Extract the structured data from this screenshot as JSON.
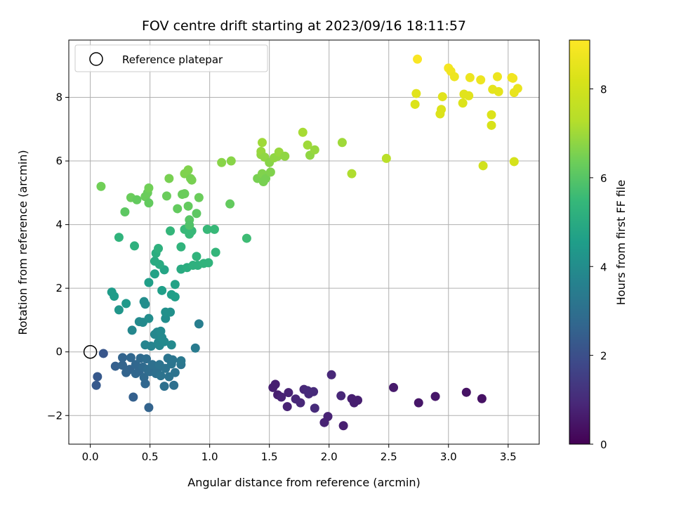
{
  "chart_data": {
    "type": "scatter",
    "title": "FOV centre drift starting at 2023/09/16 18:11:57",
    "xlabel": "Angular distance from reference (arcmin)",
    "ylabel": "Rotation from reference (arcmin)",
    "xlim": [
      -0.18,
      3.76
    ],
    "ylim": [
      -2.9,
      9.8
    ],
    "xticks": [
      "0.0",
      "0.5",
      "1.0",
      "1.5",
      "2.0",
      "2.5",
      "3.0",
      "3.5"
    ],
    "yticks": [
      "−2",
      "0",
      "2",
      "4",
      "6",
      "8"
    ],
    "grid": true,
    "legend": {
      "position": "top-left",
      "entries": [
        "Reference platepar"
      ]
    },
    "reference_point": {
      "x": 0.0,
      "y": 0.0
    },
    "colorbar": {
      "label": "Hours from first FF file",
      "range": [
        0,
        9.1
      ],
      "ticks": [
        "0",
        "2",
        "4",
        "6",
        "8"
      ],
      "colormap": "viridis"
    },
    "points": [
      {
        "x": 1.53,
        "y": -1.12,
        "t": 0.7
      },
      {
        "x": 1.55,
        "y": -1.02,
        "t": 0.7
      },
      {
        "x": 1.57,
        "y": -1.35,
        "t": 0.7
      },
      {
        "x": 1.6,
        "y": -1.42,
        "t": 0.8
      },
      {
        "x": 1.65,
        "y": -1.72,
        "t": 0.8
      },
      {
        "x": 1.66,
        "y": -1.28,
        "t": 0.8
      },
      {
        "x": 1.72,
        "y": -1.48,
        "t": 0.9
      },
      {
        "x": 1.76,
        "y": -1.6,
        "t": 0.9
      },
      {
        "x": 1.79,
        "y": -1.18,
        "t": 0.9
      },
      {
        "x": 1.82,
        "y": -1.22,
        "t": 1.0
      },
      {
        "x": 1.83,
        "y": -1.32,
        "t": 1.0
      },
      {
        "x": 1.87,
        "y": -1.25,
        "t": 1.0
      },
      {
        "x": 1.88,
        "y": -1.77,
        "t": 1.0
      },
      {
        "x": 1.96,
        "y": -2.22,
        "t": 0.8
      },
      {
        "x": 1.99,
        "y": -2.03,
        "t": 0.8
      },
      {
        "x": 2.02,
        "y": -0.72,
        "t": 0.9
      },
      {
        "x": 2.1,
        "y": -1.38,
        "t": 0.9
      },
      {
        "x": 2.12,
        "y": -2.32,
        "t": 0.7
      },
      {
        "x": 2.19,
        "y": -1.47,
        "t": 0.7
      },
      {
        "x": 2.21,
        "y": -1.6,
        "t": 0.7
      },
      {
        "x": 2.24,
        "y": -1.52,
        "t": 0.7
      },
      {
        "x": 2.54,
        "y": -1.12,
        "t": 0.6
      },
      {
        "x": 2.75,
        "y": -1.6,
        "t": 0.5
      },
      {
        "x": 2.89,
        "y": -1.4,
        "t": 0.5
      },
      {
        "x": 3.15,
        "y": -1.27,
        "t": 0.4
      },
      {
        "x": 3.28,
        "y": -1.47,
        "t": 0.4
      },
      {
        "x": 0.05,
        "y": -1.05,
        "t": 2.3
      },
      {
        "x": 0.06,
        "y": -0.78,
        "t": 2.3
      },
      {
        "x": 0.11,
        "y": -0.05,
        "t": 2.2
      },
      {
        "x": 0.21,
        "y": -0.45,
        "t": 2.5
      },
      {
        "x": 0.27,
        "y": -0.42,
        "t": 2.6
      },
      {
        "x": 0.27,
        "y": -0.18,
        "t": 2.6
      },
      {
        "x": 0.3,
        "y": -0.65,
        "t": 2.6
      },
      {
        "x": 0.33,
        "y": -0.55,
        "t": 2.6
      },
      {
        "x": 0.34,
        "y": -0.18,
        "t": 2.7
      },
      {
        "x": 0.36,
        "y": -1.42,
        "t": 2.5
      },
      {
        "x": 0.38,
        "y": -0.4,
        "t": 2.7
      },
      {
        "x": 0.38,
        "y": -0.68,
        "t": 2.7
      },
      {
        "x": 0.41,
        "y": -0.6,
        "t": 2.7
      },
      {
        "x": 0.42,
        "y": -0.2,
        "t": 2.8
      },
      {
        "x": 0.44,
        "y": -0.48,
        "t": 2.8
      },
      {
        "x": 0.45,
        "y": -0.8,
        "t": 2.8
      },
      {
        "x": 0.46,
        "y": -1.0,
        "t": 2.7
      },
      {
        "x": 0.47,
        "y": -0.22,
        "t": 2.9
      },
      {
        "x": 0.48,
        "y": -0.55,
        "t": 2.9
      },
      {
        "x": 0.49,
        "y": -1.75,
        "t": 2.6
      },
      {
        "x": 0.5,
        "y": -0.62,
        "t": 2.9
      },
      {
        "x": 0.52,
        "y": -0.4,
        "t": 3.0
      },
      {
        "x": 0.55,
        "y": -0.68,
        "t": 3.0
      },
      {
        "x": 0.56,
        "y": -0.55,
        "t": 3.0
      },
      {
        "x": 0.58,
        "y": -0.4,
        "t": 3.1
      },
      {
        "x": 0.59,
        "y": -0.75,
        "t": 3.1
      },
      {
        "x": 0.62,
        "y": -1.08,
        "t": 3.0
      },
      {
        "x": 0.63,
        "y": -0.52,
        "t": 3.1
      },
      {
        "x": 0.65,
        "y": -0.2,
        "t": 3.2
      },
      {
        "x": 0.66,
        "y": -0.78,
        "t": 3.1
      },
      {
        "x": 0.68,
        "y": -0.38,
        "t": 3.2
      },
      {
        "x": 0.69,
        "y": -0.25,
        "t": 3.2
      },
      {
        "x": 0.7,
        "y": -1.05,
        "t": 3.0
      },
      {
        "x": 0.71,
        "y": -0.65,
        "t": 3.1
      },
      {
        "x": 0.76,
        "y": -0.4,
        "t": 3.2
      },
      {
        "x": 0.76,
        "y": -0.28,
        "t": 3.3
      },
      {
        "x": 0.88,
        "y": 0.12,
        "t": 3.4
      },
      {
        "x": 0.91,
        "y": 0.88,
        "t": 3.5
      },
      {
        "x": 0.35,
        "y": 0.68,
        "t": 3.8
      },
      {
        "x": 0.41,
        "y": 0.95,
        "t": 3.9
      },
      {
        "x": 0.44,
        "y": 0.93,
        "t": 3.9
      },
      {
        "x": 0.45,
        "y": 1.58,
        "t": 4.0
      },
      {
        "x": 0.46,
        "y": 1.5,
        "t": 4.0
      },
      {
        "x": 0.46,
        "y": 0.22,
        "t": 3.7
      },
      {
        "x": 0.49,
        "y": 1.05,
        "t": 4.0
      },
      {
        "x": 0.51,
        "y": 0.18,
        "t": 3.7
      },
      {
        "x": 0.54,
        "y": 0.55,
        "t": 3.8
      },
      {
        "x": 0.56,
        "y": 0.62,
        "t": 3.8
      },
      {
        "x": 0.57,
        "y": 0.3,
        "t": 3.8
      },
      {
        "x": 0.58,
        "y": 0.2,
        "t": 3.8
      },
      {
        "x": 0.59,
        "y": 0.65,
        "t": 3.9
      },
      {
        "x": 0.6,
        "y": 0.45,
        "t": 3.9
      },
      {
        "x": 0.62,
        "y": 0.32,
        "t": 3.9
      },
      {
        "x": 0.63,
        "y": 1.05,
        "t": 4.0
      },
      {
        "x": 0.63,
        "y": 1.25,
        "t": 4.1
      },
      {
        "x": 0.67,
        "y": 1.25,
        "t": 4.1
      },
      {
        "x": 0.68,
        "y": 0.22,
        "t": 3.9
      },
      {
        "x": 0.18,
        "y": 1.88,
        "t": 4.5
      },
      {
        "x": 0.2,
        "y": 1.75,
        "t": 4.5
      },
      {
        "x": 0.24,
        "y": 1.32,
        "t": 4.3
      },
      {
        "x": 0.3,
        "y": 1.52,
        "t": 4.4
      },
      {
        "x": 0.49,
        "y": 2.18,
        "t": 4.6
      },
      {
        "x": 0.54,
        "y": 2.45,
        "t": 4.7
      },
      {
        "x": 0.6,
        "y": 1.93,
        "t": 4.6
      },
      {
        "x": 0.62,
        "y": 2.58,
        "t": 4.8
      },
      {
        "x": 0.68,
        "y": 1.8,
        "t": 4.6
      },
      {
        "x": 0.71,
        "y": 1.73,
        "t": 4.6
      },
      {
        "x": 0.71,
        "y": 2.12,
        "t": 4.7
      },
      {
        "x": 0.54,
        "y": 2.85,
        "t": 5.0
      },
      {
        "x": 0.55,
        "y": 3.1,
        "t": 5.1
      },
      {
        "x": 0.57,
        "y": 3.25,
        "t": 5.2
      },
      {
        "x": 0.58,
        "y": 2.75,
        "t": 5.0
      },
      {
        "x": 0.24,
        "y": 3.6,
        "t": 5.3
      },
      {
        "x": 0.37,
        "y": 3.33,
        "t": 5.2
      },
      {
        "x": 0.67,
        "y": 3.8,
        "t": 5.4
      },
      {
        "x": 0.76,
        "y": 2.6,
        "t": 5.0
      },
      {
        "x": 0.76,
        "y": 3.3,
        "t": 5.3
      },
      {
        "x": 0.79,
        "y": 3.85,
        "t": 5.5
      },
      {
        "x": 0.81,
        "y": 2.65,
        "t": 5.1
      },
      {
        "x": 0.83,
        "y": 3.7,
        "t": 5.5
      },
      {
        "x": 0.85,
        "y": 3.8,
        "t": 5.5
      },
      {
        "x": 0.86,
        "y": 2.72,
        "t": 5.2
      },
      {
        "x": 0.89,
        "y": 3.0,
        "t": 5.3
      },
      {
        "x": 0.9,
        "y": 2.72,
        "t": 5.2
      },
      {
        "x": 0.95,
        "y": 2.78,
        "t": 5.3
      },
      {
        "x": 0.98,
        "y": 3.85,
        "t": 5.5
      },
      {
        "x": 0.99,
        "y": 2.8,
        "t": 5.3
      },
      {
        "x": 1.04,
        "y": 3.85,
        "t": 5.5
      },
      {
        "x": 1.05,
        "y": 3.13,
        "t": 5.4
      },
      {
        "x": 1.31,
        "y": 3.57,
        "t": 5.6
      },
      {
        "x": 0.09,
        "y": 5.2,
        "t": 6.4
      },
      {
        "x": 0.29,
        "y": 4.4,
        "t": 6.1
      },
      {
        "x": 0.34,
        "y": 4.85,
        "t": 6.3
      },
      {
        "x": 0.39,
        "y": 4.78,
        "t": 6.2
      },
      {
        "x": 0.46,
        "y": 4.88,
        "t": 6.3
      },
      {
        "x": 0.48,
        "y": 5.0,
        "t": 6.3
      },
      {
        "x": 0.49,
        "y": 4.68,
        "t": 6.2
      },
      {
        "x": 0.49,
        "y": 5.15,
        "t": 6.4
      },
      {
        "x": 0.64,
        "y": 4.9,
        "t": 6.3
      },
      {
        "x": 0.66,
        "y": 5.45,
        "t": 6.5
      },
      {
        "x": 0.73,
        "y": 4.5,
        "t": 6.2
      },
      {
        "x": 0.77,
        "y": 4.95,
        "t": 6.3
      },
      {
        "x": 0.79,
        "y": 4.97,
        "t": 6.3
      },
      {
        "x": 0.79,
        "y": 5.6,
        "t": 6.6
      },
      {
        "x": 0.82,
        "y": 4.58,
        "t": 6.2
      },
      {
        "x": 0.82,
        "y": 5.72,
        "t": 6.6
      },
      {
        "x": 0.83,
        "y": 4.15,
        "t": 6.0
      },
      {
        "x": 0.83,
        "y": 3.98,
        "t": 5.9
      },
      {
        "x": 0.84,
        "y": 5.45,
        "t": 6.5
      },
      {
        "x": 0.85,
        "y": 5.4,
        "t": 6.5
      },
      {
        "x": 0.89,
        "y": 4.35,
        "t": 6.1
      },
      {
        "x": 0.91,
        "y": 4.85,
        "t": 6.3
      },
      {
        "x": 1.1,
        "y": 5.95,
        "t": 6.7
      },
      {
        "x": 1.17,
        "y": 4.65,
        "t": 6.2
      },
      {
        "x": 1.18,
        "y": 6.0,
        "t": 6.7
      },
      {
        "x": 1.4,
        "y": 5.45,
        "t": 6.5
      },
      {
        "x": 1.43,
        "y": 6.2,
        "t": 6.8
      },
      {
        "x": 1.43,
        "y": 6.3,
        "t": 6.9
      },
      {
        "x": 1.44,
        "y": 5.6,
        "t": 6.6
      },
      {
        "x": 1.44,
        "y": 6.58,
        "t": 7.0
      },
      {
        "x": 1.45,
        "y": 5.35,
        "t": 6.5
      },
      {
        "x": 1.46,
        "y": 6.12,
        "t": 6.8
      },
      {
        "x": 1.47,
        "y": 5.45,
        "t": 6.5
      },
      {
        "x": 1.5,
        "y": 5.95,
        "t": 6.7
      },
      {
        "x": 1.51,
        "y": 5.65,
        "t": 6.6
      },
      {
        "x": 1.54,
        "y": 6.1,
        "t": 6.8
      },
      {
        "x": 1.57,
        "y": 6.15,
        "t": 6.8
      },
      {
        "x": 1.58,
        "y": 6.28,
        "t": 6.9
      },
      {
        "x": 1.63,
        "y": 6.15,
        "t": 6.8
      },
      {
        "x": 1.78,
        "y": 6.9,
        "t": 7.1
      },
      {
        "x": 1.82,
        "y": 6.5,
        "t": 7.0
      },
      {
        "x": 1.84,
        "y": 6.18,
        "t": 6.8
      },
      {
        "x": 1.88,
        "y": 6.35,
        "t": 6.9
      },
      {
        "x": 2.11,
        "y": 6.58,
        "t": 7.0
      },
      {
        "x": 2.19,
        "y": 5.6,
        "t": 7.2
      },
      {
        "x": 2.48,
        "y": 6.08,
        "t": 7.4
      },
      {
        "x": 2.72,
        "y": 7.78,
        "t": 8.3
      },
      {
        "x": 2.73,
        "y": 8.12,
        "t": 8.4
      },
      {
        "x": 2.74,
        "y": 9.2,
        "t": 9.0
      },
      {
        "x": 2.93,
        "y": 7.48,
        "t": 8.3
      },
      {
        "x": 2.94,
        "y": 7.62,
        "t": 8.3
      },
      {
        "x": 2.95,
        "y": 8.02,
        "t": 8.4
      },
      {
        "x": 3.0,
        "y": 8.92,
        "t": 8.9
      },
      {
        "x": 3.02,
        "y": 8.82,
        "t": 8.8
      },
      {
        "x": 3.05,
        "y": 8.65,
        "t": 8.7
      },
      {
        "x": 3.12,
        "y": 7.82,
        "t": 8.3
      },
      {
        "x": 3.13,
        "y": 8.1,
        "t": 8.4
      },
      {
        "x": 3.17,
        "y": 8.05,
        "t": 8.4
      },
      {
        "x": 3.18,
        "y": 8.62,
        "t": 8.7
      },
      {
        "x": 3.27,
        "y": 8.55,
        "t": 8.7
      },
      {
        "x": 3.29,
        "y": 5.85,
        "t": 8.0
      },
      {
        "x": 3.36,
        "y": 7.45,
        "t": 8.3
      },
      {
        "x": 3.36,
        "y": 7.12,
        "t": 8.2
      },
      {
        "x": 3.37,
        "y": 8.25,
        "t": 8.5
      },
      {
        "x": 3.41,
        "y": 8.65,
        "t": 8.7
      },
      {
        "x": 3.42,
        "y": 8.18,
        "t": 8.5
      },
      {
        "x": 3.53,
        "y": 8.62,
        "t": 8.8
      },
      {
        "x": 3.54,
        "y": 8.6,
        "t": 8.8
      },
      {
        "x": 3.55,
        "y": 8.15,
        "t": 8.6
      },
      {
        "x": 3.55,
        "y": 5.98,
        "t": 8.1
      },
      {
        "x": 3.58,
        "y": 8.28,
        "t": 8.6
      }
    ]
  }
}
